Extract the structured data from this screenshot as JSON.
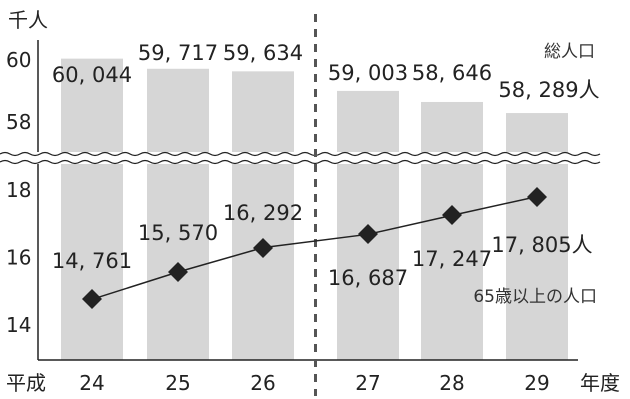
{
  "chart_data": {
    "type": "bar+line",
    "y_unit": "千人",
    "x_era_label": "平成",
    "x_unit": "年度",
    "categories": [
      "24",
      "25",
      "26",
      "27",
      "28",
      "29"
    ],
    "axis_break": true,
    "upper_ylim": [
      57.3,
      60
    ],
    "upper_yticks": [
      "60",
      "58"
    ],
    "lower_ylim": [
      13,
      19.6
    ],
    "lower_yticks": [
      "18",
      "16",
      "14"
    ],
    "series": [
      {
        "name": "総人口",
        "type": "bar",
        "values": [
          60044,
          59717,
          59634,
          59003,
          58646,
          58289
        ],
        "labels": [
          "60, 044",
          "59, 717",
          "59, 634",
          "59, 003",
          "58, 646",
          "58, 289人"
        ]
      },
      {
        "name": "65歳以上の人口",
        "type": "line",
        "values": [
          14761,
          15570,
          16292,
          16687,
          17247,
          17805
        ],
        "labels": [
          "14, 761",
          "15, 570",
          "16, 292",
          "16, 687",
          "17, 247",
          "17, 805人"
        ]
      }
    ],
    "divider_after_category": "26",
    "colors": {
      "bar": "#d6d6d6",
      "line": "#222222",
      "marker": "#222222"
    }
  }
}
